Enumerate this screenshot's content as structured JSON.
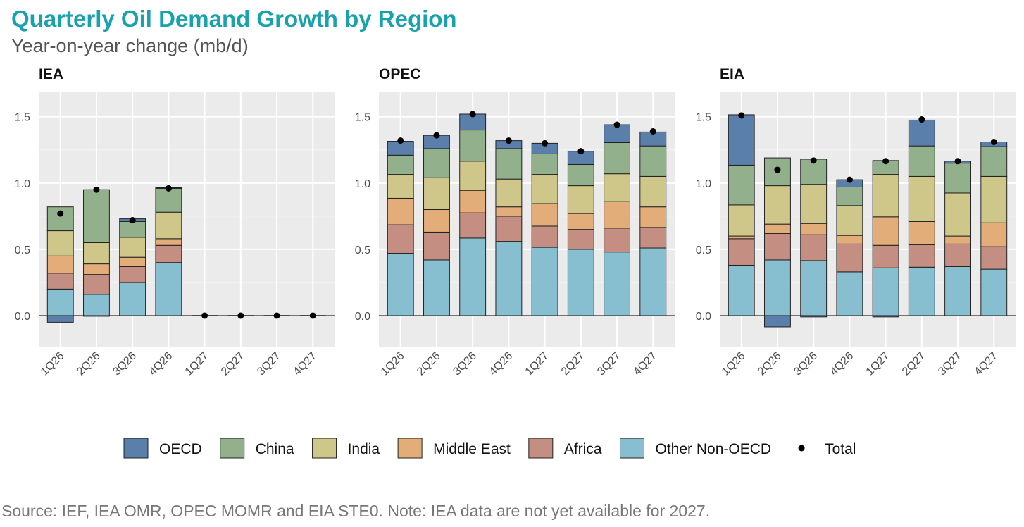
{
  "title": "Quarterly Oil Demand Growth by Region",
  "subtitle": "Year-on-year change (mb/d)",
  "source": "Source: IEF, IEA OMR, OPEC MOMR and EIA STE0. Note: IEA data are not yet available for 2027.",
  "colors": {
    "OECD": "#5b7fab",
    "China": "#93b08c",
    "India": "#cfc68a",
    "Middle East": "#e3ad7a",
    "Africa": "#c48f82",
    "Other Non-OECD": "#88bfd0",
    "Total": "#000000"
  },
  "chart_data": [
    {
      "type": "bar",
      "stacked": true,
      "title": "IEA",
      "ylim": [
        -0.234,
        1.69
      ],
      "yticks": [
        "0.0",
        "0.5",
        "1.0",
        "1.5"
      ],
      "grid": true,
      "legend": "bottom",
      "categories": [
        "1Q26",
        "2Q26",
        "3Q26",
        "4Q26",
        "1Q27",
        "2Q27",
        "3Q27",
        "4Q27"
      ],
      "series": [
        {
          "name": "Other Non-OECD",
          "values": [
            0.2,
            0.16,
            0.25,
            0.4,
            0,
            0,
            0,
            0
          ]
        },
        {
          "name": "Africa",
          "values": [
            0.12,
            0.15,
            0.12,
            0.13,
            0,
            0,
            0,
            0
          ]
        },
        {
          "name": "Middle East",
          "values": [
            0.13,
            0.08,
            0.07,
            0.05,
            0,
            0,
            0,
            0
          ]
        },
        {
          "name": "India",
          "values": [
            0.19,
            0.16,
            0.15,
            0.2,
            0,
            0,
            0,
            0
          ]
        },
        {
          "name": "China",
          "values": [
            0.18,
            0.4,
            0.12,
            0.18,
            0,
            0,
            0,
            0
          ]
        },
        {
          "name": "OECD",
          "values": [
            -0.05,
            -0.005,
            0.02,
            0.005,
            0,
            0,
            0,
            0
          ]
        }
      ],
      "total": [
        0.77,
        0.95,
        0.72,
        0.96,
        0,
        0,
        0,
        0
      ]
    },
    {
      "type": "bar",
      "stacked": true,
      "title": "OPEC",
      "ylim": [
        -0.234,
        1.69
      ],
      "yticks": [
        "0.0",
        "0.5",
        "1.0",
        "1.5"
      ],
      "grid": true,
      "legend": "bottom",
      "categories": [
        "1Q26",
        "2Q26",
        "3Q26",
        "4Q26",
        "1Q27",
        "2Q27",
        "3Q27",
        "4Q27"
      ],
      "series": [
        {
          "name": "Other Non-OECD",
          "values": [
            0.47,
            0.42,
            0.585,
            0.56,
            0.515,
            0.5,
            0.48,
            0.51
          ]
        },
        {
          "name": "Africa",
          "values": [
            0.215,
            0.21,
            0.19,
            0.19,
            0.16,
            0.15,
            0.18,
            0.155
          ]
        },
        {
          "name": "Middle East",
          "values": [
            0.2,
            0.17,
            0.17,
            0.07,
            0.17,
            0.12,
            0.2,
            0.155
          ]
        },
        {
          "name": "India",
          "values": [
            0.18,
            0.24,
            0.22,
            0.21,
            0.22,
            0.21,
            0.21,
            0.23
          ]
        },
        {
          "name": "China",
          "values": [
            0.145,
            0.22,
            0.235,
            0.23,
            0.155,
            0.16,
            0.235,
            0.23
          ]
        },
        {
          "name": "OECD",
          "values": [
            0.105,
            0.1,
            0.12,
            0.06,
            0.08,
            0.1,
            0.135,
            0.105
          ]
        }
      ],
      "total": [
        1.32,
        1.36,
        1.52,
        1.32,
        1.3,
        1.24,
        1.44,
        1.39
      ]
    },
    {
      "type": "bar",
      "stacked": true,
      "title": "EIA",
      "ylim": [
        -0.234,
        1.69
      ],
      "yticks": [
        "0.0",
        "0.5",
        "1.0",
        "1.5"
      ],
      "grid": true,
      "legend": "bottom",
      "categories": [
        "1Q26",
        "2Q26",
        "3Q26",
        "4Q26",
        "1Q27",
        "2Q27",
        "3Q27",
        "4Q27"
      ],
      "series": [
        {
          "name": "Other Non-OECD",
          "values": [
            0.38,
            0.42,
            0.415,
            0.33,
            0.36,
            0.365,
            0.37,
            0.35
          ]
        },
        {
          "name": "Africa",
          "values": [
            0.2,
            0.2,
            0.195,
            0.21,
            0.17,
            0.17,
            0.17,
            0.17
          ]
        },
        {
          "name": "Middle East",
          "values": [
            0.02,
            0.07,
            0.085,
            0.065,
            0.215,
            0.175,
            0.06,
            0.18
          ]
        },
        {
          "name": "India",
          "values": [
            0.235,
            0.29,
            0.295,
            0.225,
            0.32,
            0.34,
            0.325,
            0.35
          ]
        },
        {
          "name": "China",
          "values": [
            0.3,
            0.21,
            0.19,
            0.14,
            0.105,
            0.23,
            0.225,
            0.225
          ]
        },
        {
          "name": "OECD",
          "values": [
            0.38,
            -0.085,
            -0.01,
            0.055,
            -0.01,
            0.195,
            0.015,
            0.035
          ]
        }
      ],
      "total": [
        1.51,
        1.1,
        1.17,
        1.025,
        1.165,
        1.48,
        1.165,
        1.31
      ]
    }
  ],
  "legend": [
    "OECD",
    "China",
    "India",
    "Middle East",
    "Africa",
    "Other Non-OECD",
    "Total"
  ]
}
